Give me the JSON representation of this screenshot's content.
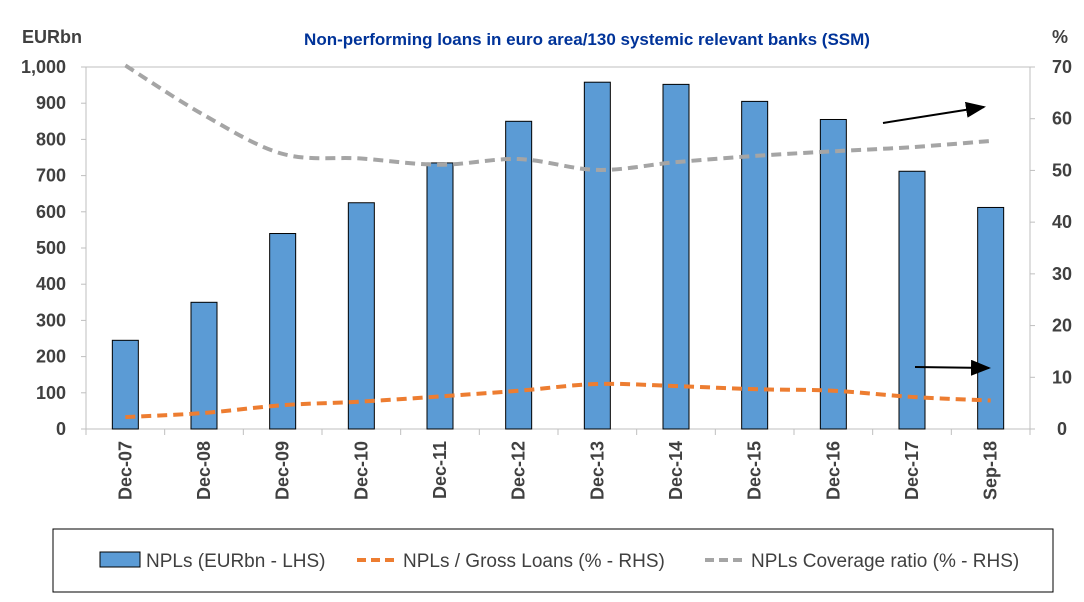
{
  "chart_data": {
    "type": "bar",
    "title": "Non-performing loans in euro area/130 systemic relevant banks (SSM)",
    "left_unit": "EURbn",
    "right_unit": "%",
    "categories": [
      "Dec-07",
      "Dec-08",
      "Dec-09",
      "Dec-10",
      "Dec-11",
      "Dec-12",
      "Dec-13",
      "Dec-14",
      "Dec-15",
      "Dec-16",
      "Dec-17",
      "Sep-18"
    ],
    "left_axis": {
      "ylim": [
        0,
        1000
      ],
      "ticks": [
        "0",
        "100",
        "200",
        "300",
        "400",
        "500",
        "600",
        "700",
        "800",
        "900",
        "1,000"
      ]
    },
    "right_axis": {
      "ylim": [
        0,
        70
      ],
      "ticks": [
        "0",
        "10",
        "20",
        "30",
        "40",
        "50",
        "60",
        "70"
      ]
    },
    "series": [
      {
        "name": "NPLs (EURbn - LHS)",
        "type": "bar",
        "axis": "left",
        "color": "#5b9bd5",
        "values": [
          245,
          350,
          540,
          625,
          735,
          850,
          958,
          952,
          905,
          855,
          712,
          612
        ]
      },
      {
        "name": "NPLs / Gross Loans (% - RHS)",
        "type": "line",
        "axis": "right",
        "color": "#ed7d31",
        "dash": true,
        "values": [
          2.3,
          3.1,
          4.6,
          5.3,
          6.3,
          7.4,
          8.7,
          8.3,
          7.7,
          7.4,
          6.2,
          5.5
        ]
      },
      {
        "name": "NPLs Coverage ratio (% - RHS)",
        "type": "line",
        "axis": "right",
        "color": "#a5a5a5",
        "dash": true,
        "values": [
          70.3,
          60.7,
          53.2,
          52.3,
          51.1,
          52.2,
          50.1,
          51.6,
          52.8,
          53.7,
          54.5,
          55.7
        ]
      }
    ],
    "legend_position": "bottom",
    "grid": false
  }
}
